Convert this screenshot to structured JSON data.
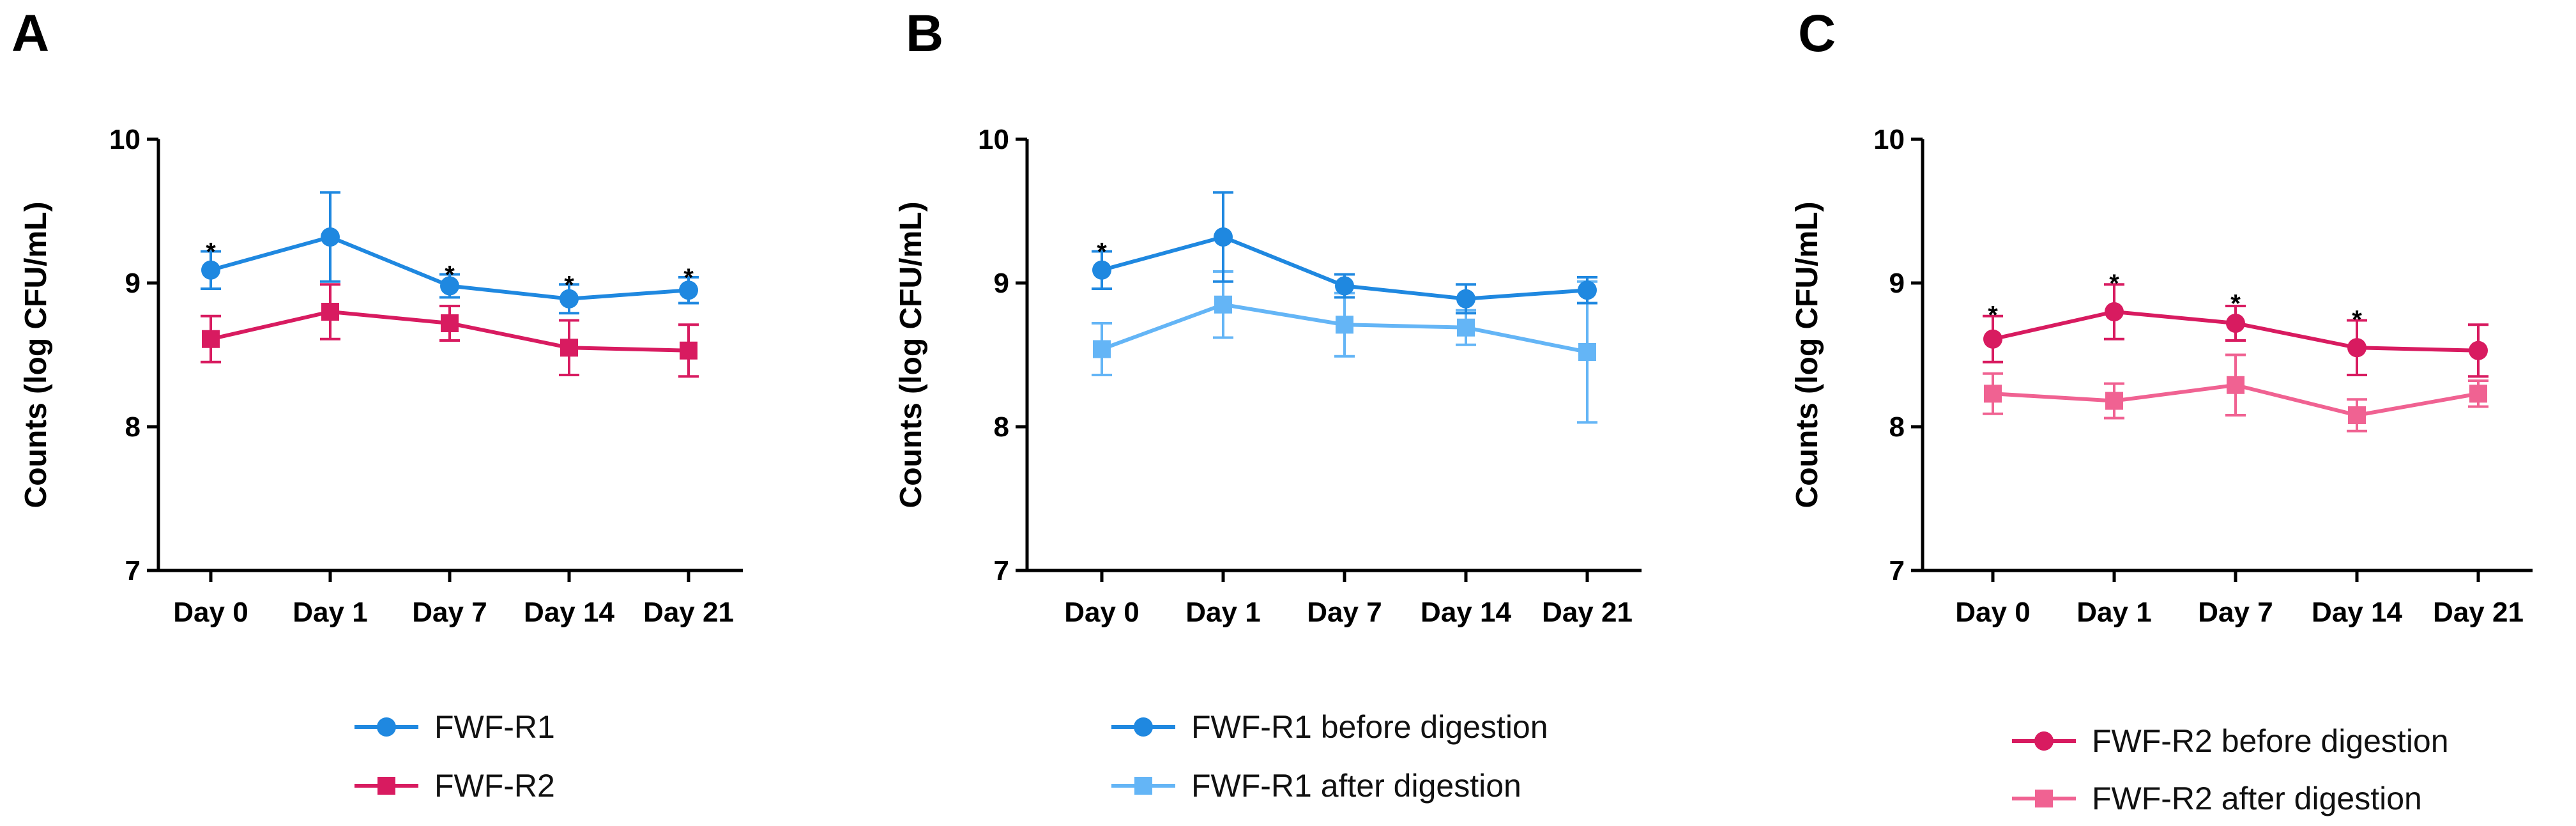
{
  "chart_data": [
    {
      "type": "line",
      "panel_label": "A",
      "ylabel": "Counts (log CFU/mL)",
      "xlabel": "",
      "ylim": [
        7,
        10
      ],
      "yticks": [
        7,
        8,
        9,
        10
      ],
      "categories": [
        "Day 0",
        "Day 1",
        "Day 7",
        "Day 14",
        "Day 21"
      ],
      "series": [
        {
          "name": "FWF-R1",
          "color": "#1f88e0",
          "marker": "circle",
          "values": [
            9.09,
            9.32,
            8.98,
            8.89,
            8.95
          ],
          "errors": [
            0.13,
            0.31,
            0.08,
            0.1,
            0.09
          ]
        },
        {
          "name": "FWF-R2",
          "color": "#d81b60",
          "marker": "square",
          "values": [
            8.61,
            8.8,
            8.72,
            8.55,
            8.53
          ],
          "errors": [
            0.16,
            0.19,
            0.12,
            0.19,
            0.18
          ]
        }
      ],
      "annotations": [
        {
          "category": "Day 0",
          "text": "*",
          "y": 9.22
        },
        {
          "category": "Day 7",
          "text": "*",
          "y": 9.06
        },
        {
          "category": "Day 14",
          "text": "*",
          "y": 8.99
        },
        {
          "category": "Day 21",
          "text": "*",
          "y": 9.04
        }
      ],
      "legend_position": "bottom"
    },
    {
      "type": "line",
      "panel_label": "B",
      "ylabel": "Counts (log CFU/mL)",
      "xlabel": "",
      "ylim": [
        7,
        10
      ],
      "yticks": [
        7,
        8,
        9,
        10
      ],
      "categories": [
        "Day 0",
        "Day 1",
        "Day 7",
        "Day 14",
        "Day 21"
      ],
      "series": [
        {
          "name": "FWF-R1 before digestion",
          "color": "#1f88e0",
          "marker": "circle",
          "values": [
            9.09,
            9.32,
            8.98,
            8.89,
            8.95
          ],
          "errors": [
            0.13,
            0.31,
            0.08,
            0.1,
            0.09
          ]
        },
        {
          "name": "FWF-R1 after digestion",
          "color": "#64b5f6",
          "marker": "square",
          "values": [
            8.54,
            8.85,
            8.71,
            8.69,
            8.52
          ],
          "errors": [
            0.18,
            0.23,
            0.22,
            0.12,
            0.49
          ]
        }
      ],
      "annotations": [
        {
          "category": "Day 0",
          "text": "*",
          "y": 9.22
        }
      ],
      "legend_position": "bottom"
    },
    {
      "type": "line",
      "panel_label": "C",
      "ylabel": "Counts (log CFU/mL)",
      "xlabel": "",
      "ylim": [
        7,
        10
      ],
      "yticks": [
        7,
        8,
        9,
        10
      ],
      "categories": [
        "Day 0",
        "Day 1",
        "Day 7",
        "Day 14",
        "Day 21"
      ],
      "series": [
        {
          "name": "FWF-R2 before digestion",
          "color": "#d81b60",
          "marker": "circle",
          "values": [
            8.61,
            8.8,
            8.72,
            8.55,
            8.53
          ],
          "errors": [
            0.16,
            0.19,
            0.12,
            0.19,
            0.18
          ]
        },
        {
          "name": "FWF-R2 after digestion",
          "color": "#f06292",
          "marker": "square",
          "values": [
            8.23,
            8.18,
            8.29,
            8.08,
            8.23
          ],
          "errors": [
            0.14,
            0.12,
            0.21,
            0.11,
            0.09
          ]
        }
      ],
      "annotations": [
        {
          "category": "Day 0",
          "text": "*",
          "y": 8.78
        },
        {
          "category": "Day 1",
          "text": "*",
          "y": 9.0
        },
        {
          "category": "Day 7",
          "text": "*",
          "y": 8.86
        },
        {
          "category": "Day 14",
          "text": "*",
          "y": 8.75
        }
      ],
      "legend_position": "bottom"
    }
  ]
}
